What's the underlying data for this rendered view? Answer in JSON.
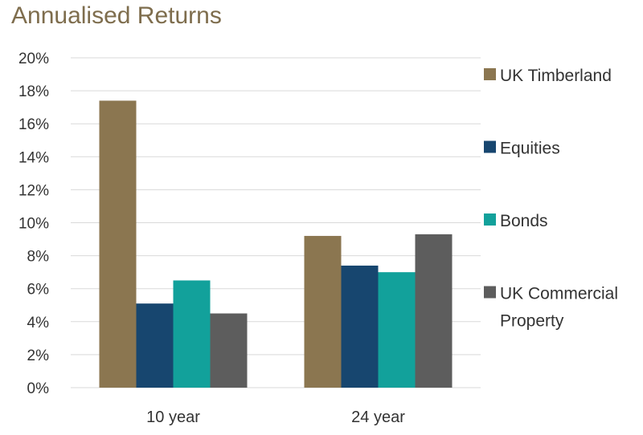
{
  "chart_data": {
    "type": "bar",
    "title": "Annualised Returns",
    "xlabel": "",
    "ylabel": "",
    "categories": [
      "10 year",
      "24 year"
    ],
    "ylim": [
      0,
      20
    ],
    "y_ticks": [
      "0%",
      "2%",
      "4%",
      "6%",
      "8%",
      "10%",
      "12%",
      "14%",
      "16%",
      "18%",
      "20%"
    ],
    "grid": true,
    "legend_position": "right",
    "series": [
      {
        "name": "UK Timberland",
        "legend_lines": [
          "UK Timberland"
        ],
        "color": "#8b7650",
        "values": [
          17.4,
          9.2
        ]
      },
      {
        "name": "Equities",
        "legend_lines": [
          "Equities"
        ],
        "color": "#17466f",
        "values": [
          5.1,
          7.4
        ]
      },
      {
        "name": "Bonds",
        "legend_lines": [
          "Bonds"
        ],
        "color": "#12a19b",
        "values": [
          6.5,
          7.0
        ]
      },
      {
        "name": "UK Commercial Property",
        "legend_lines": [
          "UK Commercial",
          "Property"
        ],
        "color": "#5d5d5d",
        "values": [
          4.5,
          9.3
        ]
      }
    ]
  }
}
